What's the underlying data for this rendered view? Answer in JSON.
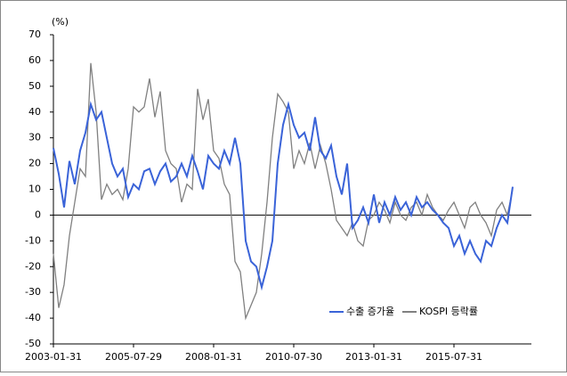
{
  "chart_data": {
    "type": "line",
    "unit_label": "(%)",
    "categories": [
      "2003-01-31",
      null,
      null,
      null,
      null,
      null,
      null,
      null,
      null,
      null,
      null,
      null,
      null,
      null,
      null,
      "2005-07-29",
      null,
      null,
      null,
      null,
      null,
      null,
      null,
      null,
      null,
      null,
      null,
      null,
      null,
      null,
      "2008-01-31",
      null,
      null,
      null,
      null,
      null,
      null,
      null,
      null,
      null,
      null,
      null,
      null,
      null,
      null,
      "2010-07-30",
      null,
      null,
      null,
      null,
      null,
      null,
      null,
      null,
      null,
      null,
      null,
      null,
      null,
      null,
      "2013-01-31",
      null,
      null,
      null,
      null,
      null,
      null,
      null,
      null,
      null,
      null,
      null,
      null,
      null,
      null,
      "2015-07-31",
      null,
      null,
      null,
      null,
      null,
      null,
      null,
      null,
      null,
      null,
      null
    ],
    "series": [
      {
        "name": "수출 증가율",
        "color": "#3a63d8",
        "values": [
          26,
          16,
          3,
          21,
          12,
          25,
          32,
          43,
          37,
          40,
          30,
          20,
          15,
          18,
          7,
          12,
          10,
          17,
          18,
          12,
          17,
          20,
          13,
          15,
          20,
          15,
          23,
          17,
          10,
          23,
          20,
          18,
          25,
          20,
          30,
          20,
          -10,
          -18,
          -20,
          -28,
          -20,
          -10,
          20,
          35,
          43,
          35,
          30,
          32,
          25,
          38,
          25,
          22,
          27,
          15,
          8,
          20,
          -5,
          -2,
          3,
          -3,
          8,
          -3,
          5,
          0,
          7,
          2,
          5,
          0,
          7,
          3,
          5,
          2,
          0,
          -3,
          -5,
          -12,
          -8,
          -15,
          -10,
          -15,
          -18,
          -10,
          -12,
          -5,
          0,
          -3,
          11
        ]
      },
      {
        "name": "KOSPI 등락률",
        "color": "#808080",
        "values": [
          -15,
          -36,
          -27,
          -8,
          5,
          18,
          15,
          59,
          40,
          6,
          12,
          8,
          10,
          6,
          18,
          42,
          40,
          42,
          53,
          38,
          48,
          25,
          20,
          18,
          5,
          12,
          10,
          49,
          37,
          45,
          25,
          22,
          12,
          8,
          -18,
          -22,
          -40,
          -35,
          -30,
          -15,
          5,
          30,
          47,
          44,
          40,
          18,
          25,
          20,
          28,
          18,
          27,
          20,
          10,
          -2,
          -5,
          -8,
          -3,
          -10,
          -12,
          -2,
          0,
          5,
          2,
          -3,
          5,
          0,
          -2,
          3,
          5,
          0,
          8,
          3,
          0,
          -2,
          2,
          5,
          0,
          -5,
          3,
          5,
          0,
          -3,
          -8,
          2,
          5,
          0,
          10
        ]
      }
    ],
    "ylim": [
      -50,
      70
    ],
    "yticks": [
      -50,
      -40,
      -30,
      -20,
      -10,
      0,
      10,
      20,
      30,
      40,
      50,
      60,
      70
    ],
    "legend": "lower-right"
  }
}
